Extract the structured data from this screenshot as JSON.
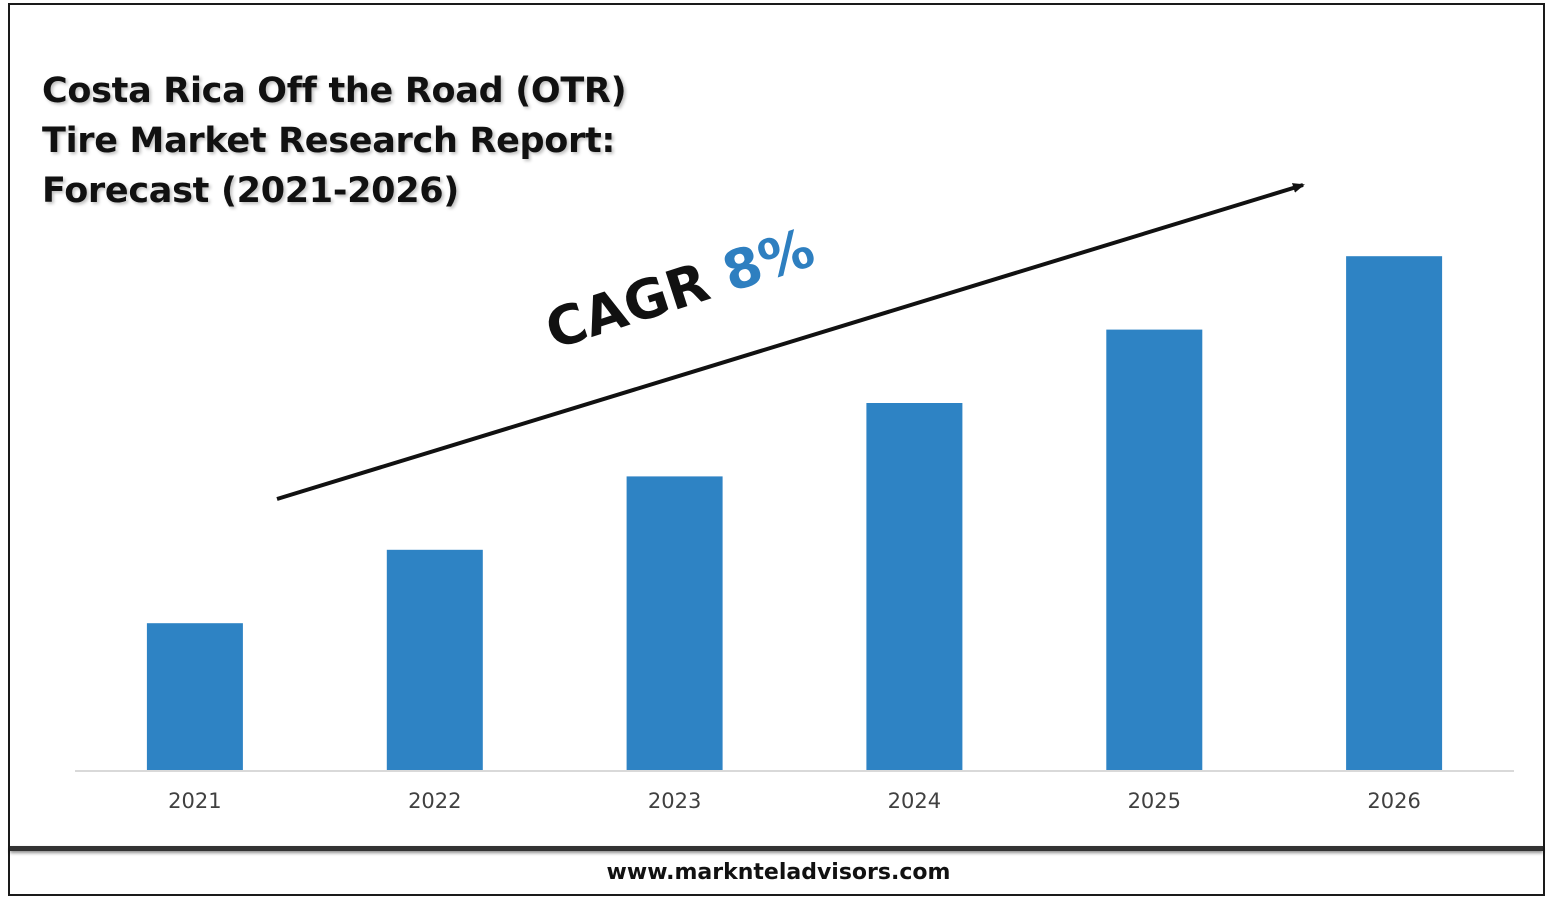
{
  "title_lines": [
    "Costa Rica Off the Road (OTR)",
    "Tire Market Research Report:",
    "Forecast (2021-2026)"
  ],
  "annotation": {
    "label": "CAGR",
    "value": "8%",
    "value_color": "#2e7fc0"
  },
  "footer": {
    "url": "www.marknteladvisors.com"
  },
  "colors": {
    "bar": "#2e83c4",
    "axis": "#d9d9d9",
    "tick_text": "#404040"
  },
  "chart_data": {
    "type": "bar",
    "categories": [
      "2021",
      "2022",
      "2023",
      "2024",
      "2025",
      "2026"
    ],
    "values": [
      1.0,
      1.5,
      2.0,
      2.5,
      3.0,
      3.5
    ],
    "ylim": [
      0,
      3.8
    ],
    "grid": false,
    "legend": "none",
    "title": "Costa Rica Off the Road (OTR) Tire Market Research Report: Forecast (2021-2026)",
    "xlabel": "",
    "ylabel": ""
  }
}
